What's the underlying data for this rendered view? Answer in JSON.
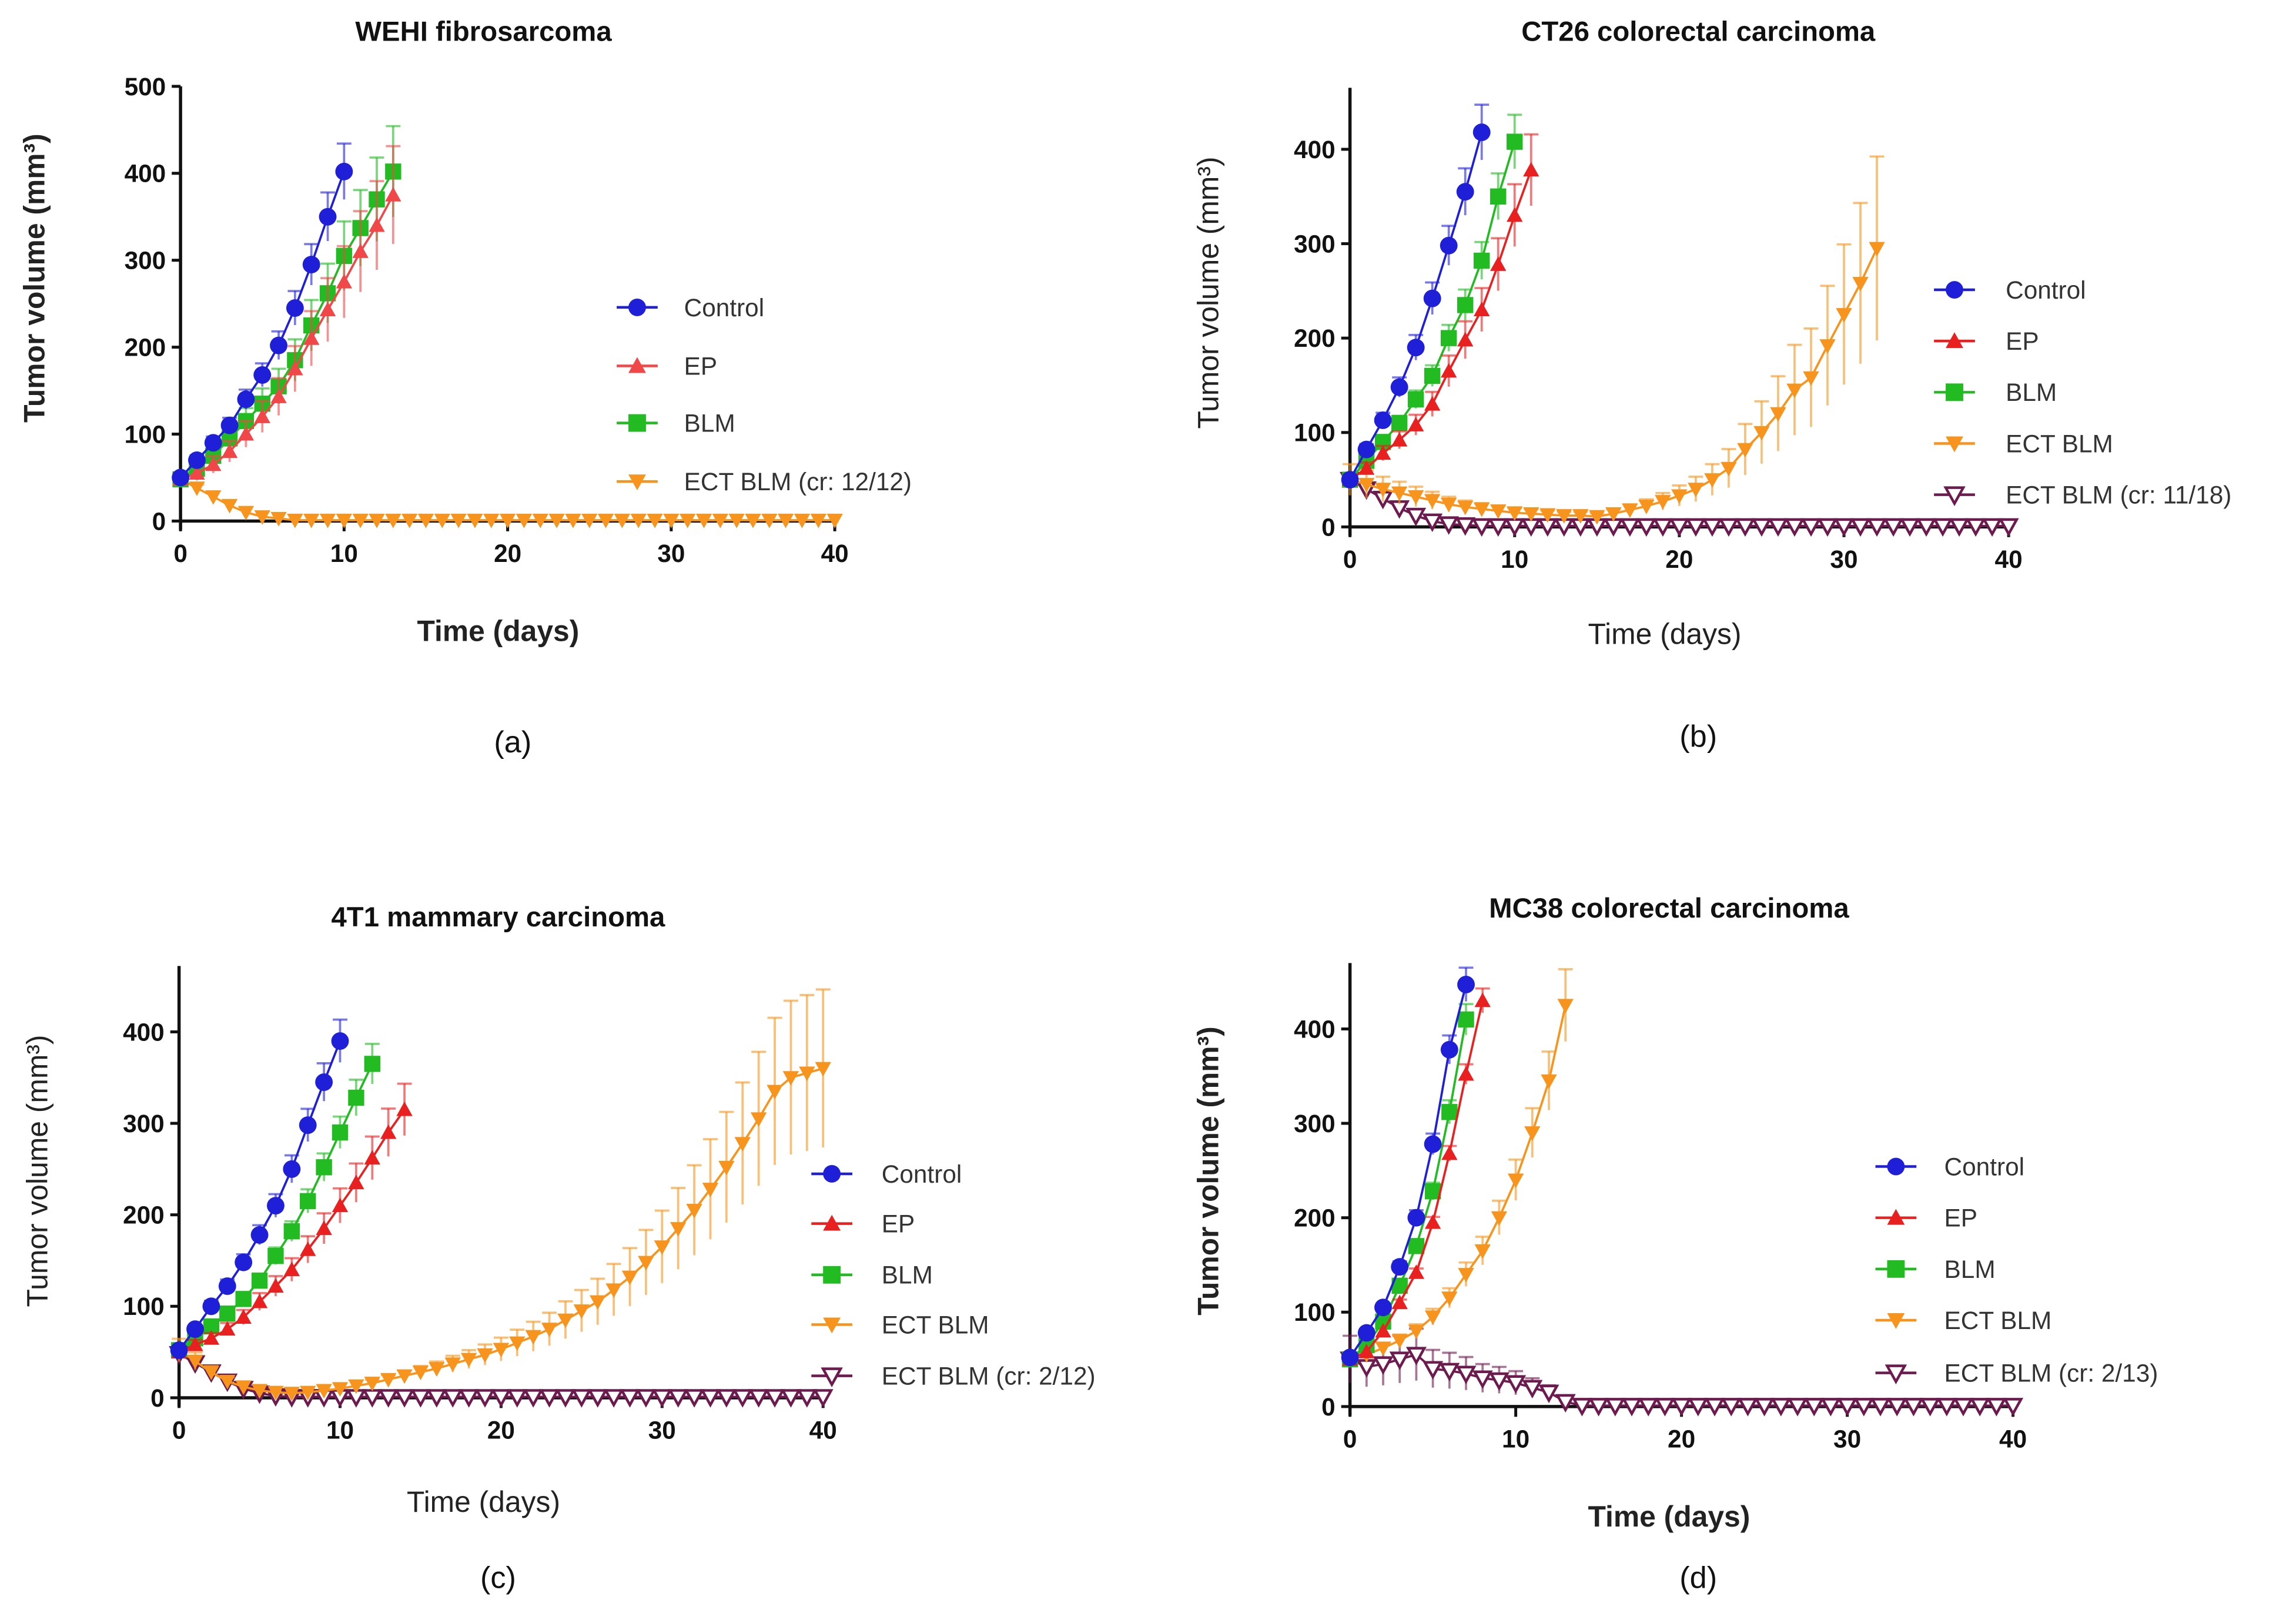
{
  "chart_data": [
    {
      "type": "line",
      "panel": "(a)",
      "title": "WEHI fibrosarcoma",
      "xlabel": "Time (days)",
      "ylabel": "Tumor volume (mm³)",
      "xlim": [
        0,
        40
      ],
      "ylim": [
        0,
        500
      ],
      "xticks": [
        0,
        10,
        20,
        30,
        40
      ],
      "yticks": [
        0,
        100,
        200,
        300,
        400,
        500
      ],
      "legend_position": "right",
      "series": [
        {
          "name": "Control",
          "color": "#1f1fd8",
          "marker": "circle",
          "x_start": 0,
          "err_frac": 0.08,
          "values": [
            50,
            70,
            90,
            110,
            140,
            168,
            202,
            245,
            295,
            350,
            402
          ]
        },
        {
          "name": "EP",
          "color": "#f04848",
          "marker": "triangle-up",
          "x_start": 0,
          "err_frac": 0.15,
          "values": [
            48,
            55,
            65,
            80,
            100,
            120,
            143,
            175,
            210,
            243,
            275,
            310,
            340,
            375
          ]
        },
        {
          "name": "BLM",
          "color": "#22bb22",
          "marker": "square",
          "x_start": 0,
          "err_frac": 0.13,
          "values": [
            48,
            60,
            75,
            95,
            115,
            135,
            155,
            185,
            225,
            262,
            305,
            337,
            370,
            402
          ]
        },
        {
          "name": "ECT BLM (cr: 12/12)",
          "color": "#f7941d",
          "marker": "triangle-down",
          "x_start": 0,
          "err_frac": 0.1,
          "values": [
            48,
            38,
            28,
            18,
            10,
            5,
            3,
            1,
            1,
            1,
            1,
            1,
            1,
            1,
            1,
            1,
            1,
            1,
            1,
            1,
            1,
            1,
            1,
            1,
            1,
            1,
            1,
            1,
            1,
            1,
            1,
            1,
            1,
            1,
            1,
            1,
            1,
            1,
            1,
            1,
            1
          ]
        }
      ]
    },
    {
      "type": "line",
      "panel": "(b)",
      "title": "CT26 colorectal carcinoma",
      "xlabel": "Time (days)",
      "ylabel": "Tumor volume (mm³)",
      "xlim": [
        0,
        40
      ],
      "ylim": [
        0,
        460
      ],
      "xticks": [
        0,
        10,
        20,
        30,
        40
      ],
      "yticks": [
        0,
        100,
        200,
        300,
        400
      ],
      "legend_position": "right",
      "series": [
        {
          "name": "Control",
          "color": "#1f1fd8",
          "marker": "circle",
          "x_start": 0,
          "err_frac": 0.07,
          "values": [
            50,
            82,
            113,
            148,
            190,
            242,
            298,
            355,
            418
          ]
        },
        {
          "name": "EP",
          "color": "#e82020",
          "marker": "triangle-up",
          "x_start": 0,
          "err_frac": 0.1,
          "values": [
            50,
            62,
            78,
            92,
            108,
            130,
            165,
            198,
            230,
            278,
            330,
            378
          ]
        },
        {
          "name": "BLM",
          "color": "#22bb22",
          "marker": "square",
          "x_start": 0,
          "err_frac": 0.07,
          "values": [
            50,
            70,
            90,
            110,
            135,
            160,
            200,
            235,
            282,
            350,
            408
          ]
        },
        {
          "name": "ECT BLM",
          "color": "#f7941d",
          "marker": "triangle-down",
          "x_start": 0,
          "err_frac": 0.33,
          "values": [
            50,
            45,
            40,
            36,
            32,
            28,
            24,
            21,
            19,
            17,
            15,
            14,
            13,
            12,
            12,
            11,
            14,
            18,
            22,
            27,
            33,
            40,
            50,
            62,
            82,
            100,
            120,
            145,
            158,
            192,
            225,
            258,
            295
          ]
        },
        {
          "name": "ECT BLM (cr: 11/18)",
          "color": "#6d1a4f",
          "marker": "triangle-down-open",
          "x_start": 0,
          "err_frac": 0.1,
          "values": [
            50,
            40,
            30,
            20,
            12,
            6,
            3,
            2,
            1,
            1,
            1,
            1,
            1,
            1,
            1,
            1,
            1,
            1,
            1,
            1,
            1,
            1,
            1,
            1,
            1,
            1,
            1,
            1,
            1,
            1,
            1,
            1,
            1,
            1,
            1,
            1,
            1,
            1,
            1,
            1,
            1
          ]
        }
      ]
    },
    {
      "type": "line",
      "panel": "(c)",
      "title": "4T1 mammary carcinoma",
      "xlabel": "Time (days)",
      "ylabel": "Tumor volume (mm³)",
      "xlim": [
        0,
        40
      ],
      "ylim": [
        0,
        460
      ],
      "xticks": [
        0,
        10,
        20,
        30,
        40
      ],
      "yticks": [
        0,
        100,
        200,
        300,
        400
      ],
      "legend_position": "right",
      "series": [
        {
          "name": "Control",
          "color": "#1f1fd8",
          "marker": "circle",
          "x_start": 0,
          "err_frac": 0.06,
          "values": [
            52,
            75,
            100,
            122,
            148,
            178,
            210,
            250,
            298,
            345,
            390
          ]
        },
        {
          "name": "EP",
          "color": "#e82020",
          "marker": "triangle-up",
          "x_start": 0,
          "err_frac": 0.09,
          "values": [
            50,
            58,
            65,
            75,
            88,
            105,
            122,
            140,
            162,
            185,
            210,
            235,
            262,
            290,
            315
          ]
        },
        {
          "name": "BLM",
          "color": "#22bb22",
          "marker": "square",
          "x_start": 0,
          "err_frac": 0.06,
          "values": [
            52,
            65,
            78,
            92,
            108,
            128,
            155,
            182,
            215,
            252,
            290,
            328,
            365
          ]
        },
        {
          "name": "ECT BLM",
          "color": "#f7941d",
          "marker": "triangle-down",
          "x_start": 0,
          "err_frac": 0.24,
          "values": [
            52,
            40,
            28,
            18,
            12,
            8,
            6,
            5,
            6,
            8,
            10,
            13,
            16,
            20,
            24,
            28,
            32,
            37,
            42,
            47,
            53,
            60,
            67,
            75,
            85,
            95,
            105,
            118,
            132,
            148,
            165,
            185,
            205,
            228,
            252,
            278,
            305,
            335,
            350,
            355,
            360
          ]
        },
        {
          "name": "ECT BLM (cr: 2/12)",
          "color": "#6d1a4f",
          "marker": "triangle-down-open",
          "x_start": 0,
          "err_frac": 0.1,
          "values": [
            48,
            38,
            28,
            18,
            10,
            5,
            2,
            1,
            1,
            1,
            1,
            1,
            1,
            1,
            1,
            1,
            1,
            1,
            1,
            1,
            1,
            1,
            1,
            1,
            1,
            1,
            1,
            1,
            1,
            1,
            1,
            1,
            1,
            1,
            1,
            1,
            1,
            1,
            1,
            1,
            1
          ]
        }
      ]
    },
    {
      "type": "line",
      "panel": "(d)",
      "title": "MC38 colorectal carcinoma",
      "xlabel": "Time (days)",
      "ylabel": "Tumor volume (mm³)",
      "xlim": [
        0,
        40
      ],
      "ylim": [
        0,
        460
      ],
      "xticks": [
        0,
        10,
        20,
        30,
        40
      ],
      "yticks": [
        0,
        100,
        200,
        300,
        400
      ],
      "legend_position": "right",
      "series": [
        {
          "name": "Control",
          "color": "#1f1fd8",
          "marker": "circle",
          "x_start": 0,
          "err_frac": 0.04,
          "values": [
            52,
            78,
            105,
            148,
            200,
            278,
            378,
            447
          ]
        },
        {
          "name": "EP",
          "color": "#e82020",
          "marker": "triangle-up",
          "x_start": 0,
          "err_frac": 0.03,
          "values": [
            50,
            58,
            80,
            110,
            142,
            195,
            268,
            352,
            430
          ]
        },
        {
          "name": "BLM",
          "color": "#22bb22",
          "marker": "square",
          "x_start": 0,
          "err_frac": 0.04,
          "values": [
            50,
            65,
            90,
            128,
            170,
            228,
            312,
            410
          ]
        },
        {
          "name": "ECT BLM",
          "color": "#f7941d",
          "marker": "triangle-down",
          "x_start": 0,
          "err_frac": 0.09,
          "values": [
            50,
            55,
            62,
            70,
            80,
            95,
            115,
            140,
            165,
            200,
            240,
            290,
            345,
            425
          ]
        },
        {
          "name": "ECT BLM (cr: 2/13)",
          "color": "#6d1a4f",
          "marker": "triangle-down-open",
          "x_start": 0,
          "err_frac": 0.5,
          "values": [
            50,
            42,
            45,
            50,
            55,
            40,
            38,
            35,
            30,
            28,
            25,
            20,
            15,
            5,
            1,
            1,
            1,
            1,
            1,
            1,
            1,
            1,
            1,
            1,
            1,
            1,
            1,
            1,
            1,
            1,
            1,
            1,
            1,
            1,
            1,
            1,
            1,
            1,
            1,
            1,
            1
          ]
        }
      ]
    }
  ]
}
